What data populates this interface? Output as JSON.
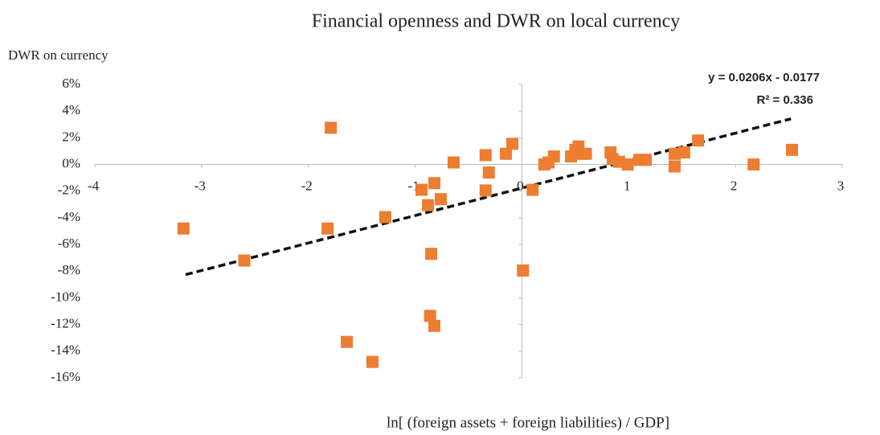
{
  "chart_data": {
    "type": "scatter",
    "title": "Financial openness and DWR on local currency",
    "y_label": "DWR on currency",
    "x_label": "ln[ (foreign assets + foreign liabilities)  / GDP]",
    "annotations": [
      "y = 0.0206x  - 0.0177",
      "R² = 0.336"
    ],
    "color": "#ED7D31",
    "xlim": [
      -4,
      3
    ],
    "xticks": [
      -4,
      -3,
      -2,
      -1,
      0,
      1,
      2,
      3
    ],
    "ylim": [
      -16,
      6
    ],
    "yticks": [
      {
        "value": 6,
        "label": "6%"
      },
      {
        "value": 4,
        "label": "4%"
      },
      {
        "value": 2,
        "label": "2%"
      },
      {
        "value": 0,
        "label": "0%"
      },
      {
        "value": -2,
        "label": "-2%"
      },
      {
        "value": -4,
        "label": "-4%"
      },
      {
        "value": -6,
        "label": "-6%"
      },
      {
        "value": -8,
        "label": "-8%"
      },
      {
        "value": -10,
        "label": "-10%"
      },
      {
        "value": -12,
        "label": "-12%"
      },
      {
        "value": -14,
        "label": "-14%"
      },
      {
        "value": -16,
        "label": "-16%"
      }
    ],
    "x": [
      -3.17,
      -2.6,
      -1.79,
      -1.82,
      -1.64,
      -1.4,
      -1.28,
      -0.94,
      -0.88,
      -0.82,
      -0.76,
      -0.85,
      -0.86,
      -0.82,
      -0.64,
      -0.34,
      -0.34,
      -0.31,
      -0.15,
      -0.09,
      0.01,
      0.1,
      0.21,
      0.25,
      0.3,
      0.46,
      0.5,
      0.53,
      0.57,
      0.6,
      0.83,
      0.85,
      0.91,
      0.99,
      1.1,
      1.16,
      1.43,
      1.43,
      1.52,
      1.65,
      2.17,
      2.53
    ],
    "values": [
      -4.8,
      -7.2,
      2.75,
      -4.8,
      -13.3,
      -14.8,
      -3.95,
      -1.9,
      -3.05,
      -1.4,
      -2.6,
      -6.7,
      -11.35,
      -12.1,
      0.15,
      0.7,
      -1.95,
      -0.6,
      0.8,
      1.55,
      -7.95,
      -1.9,
      0.0,
      0.15,
      0.6,
      0.6,
      1.1,
      1.35,
      0.8,
      0.8,
      0.9,
      0.4,
      0.2,
      0.0,
      0.35,
      0.35,
      0.8,
      -0.15,
      0.9,
      1.8,
      0.0,
      1.1
    ],
    "trendline": {
      "x": [
        -3.15,
        2.52
      ],
      "values": [
        -8.26,
        3.42
      ]
    }
  }
}
